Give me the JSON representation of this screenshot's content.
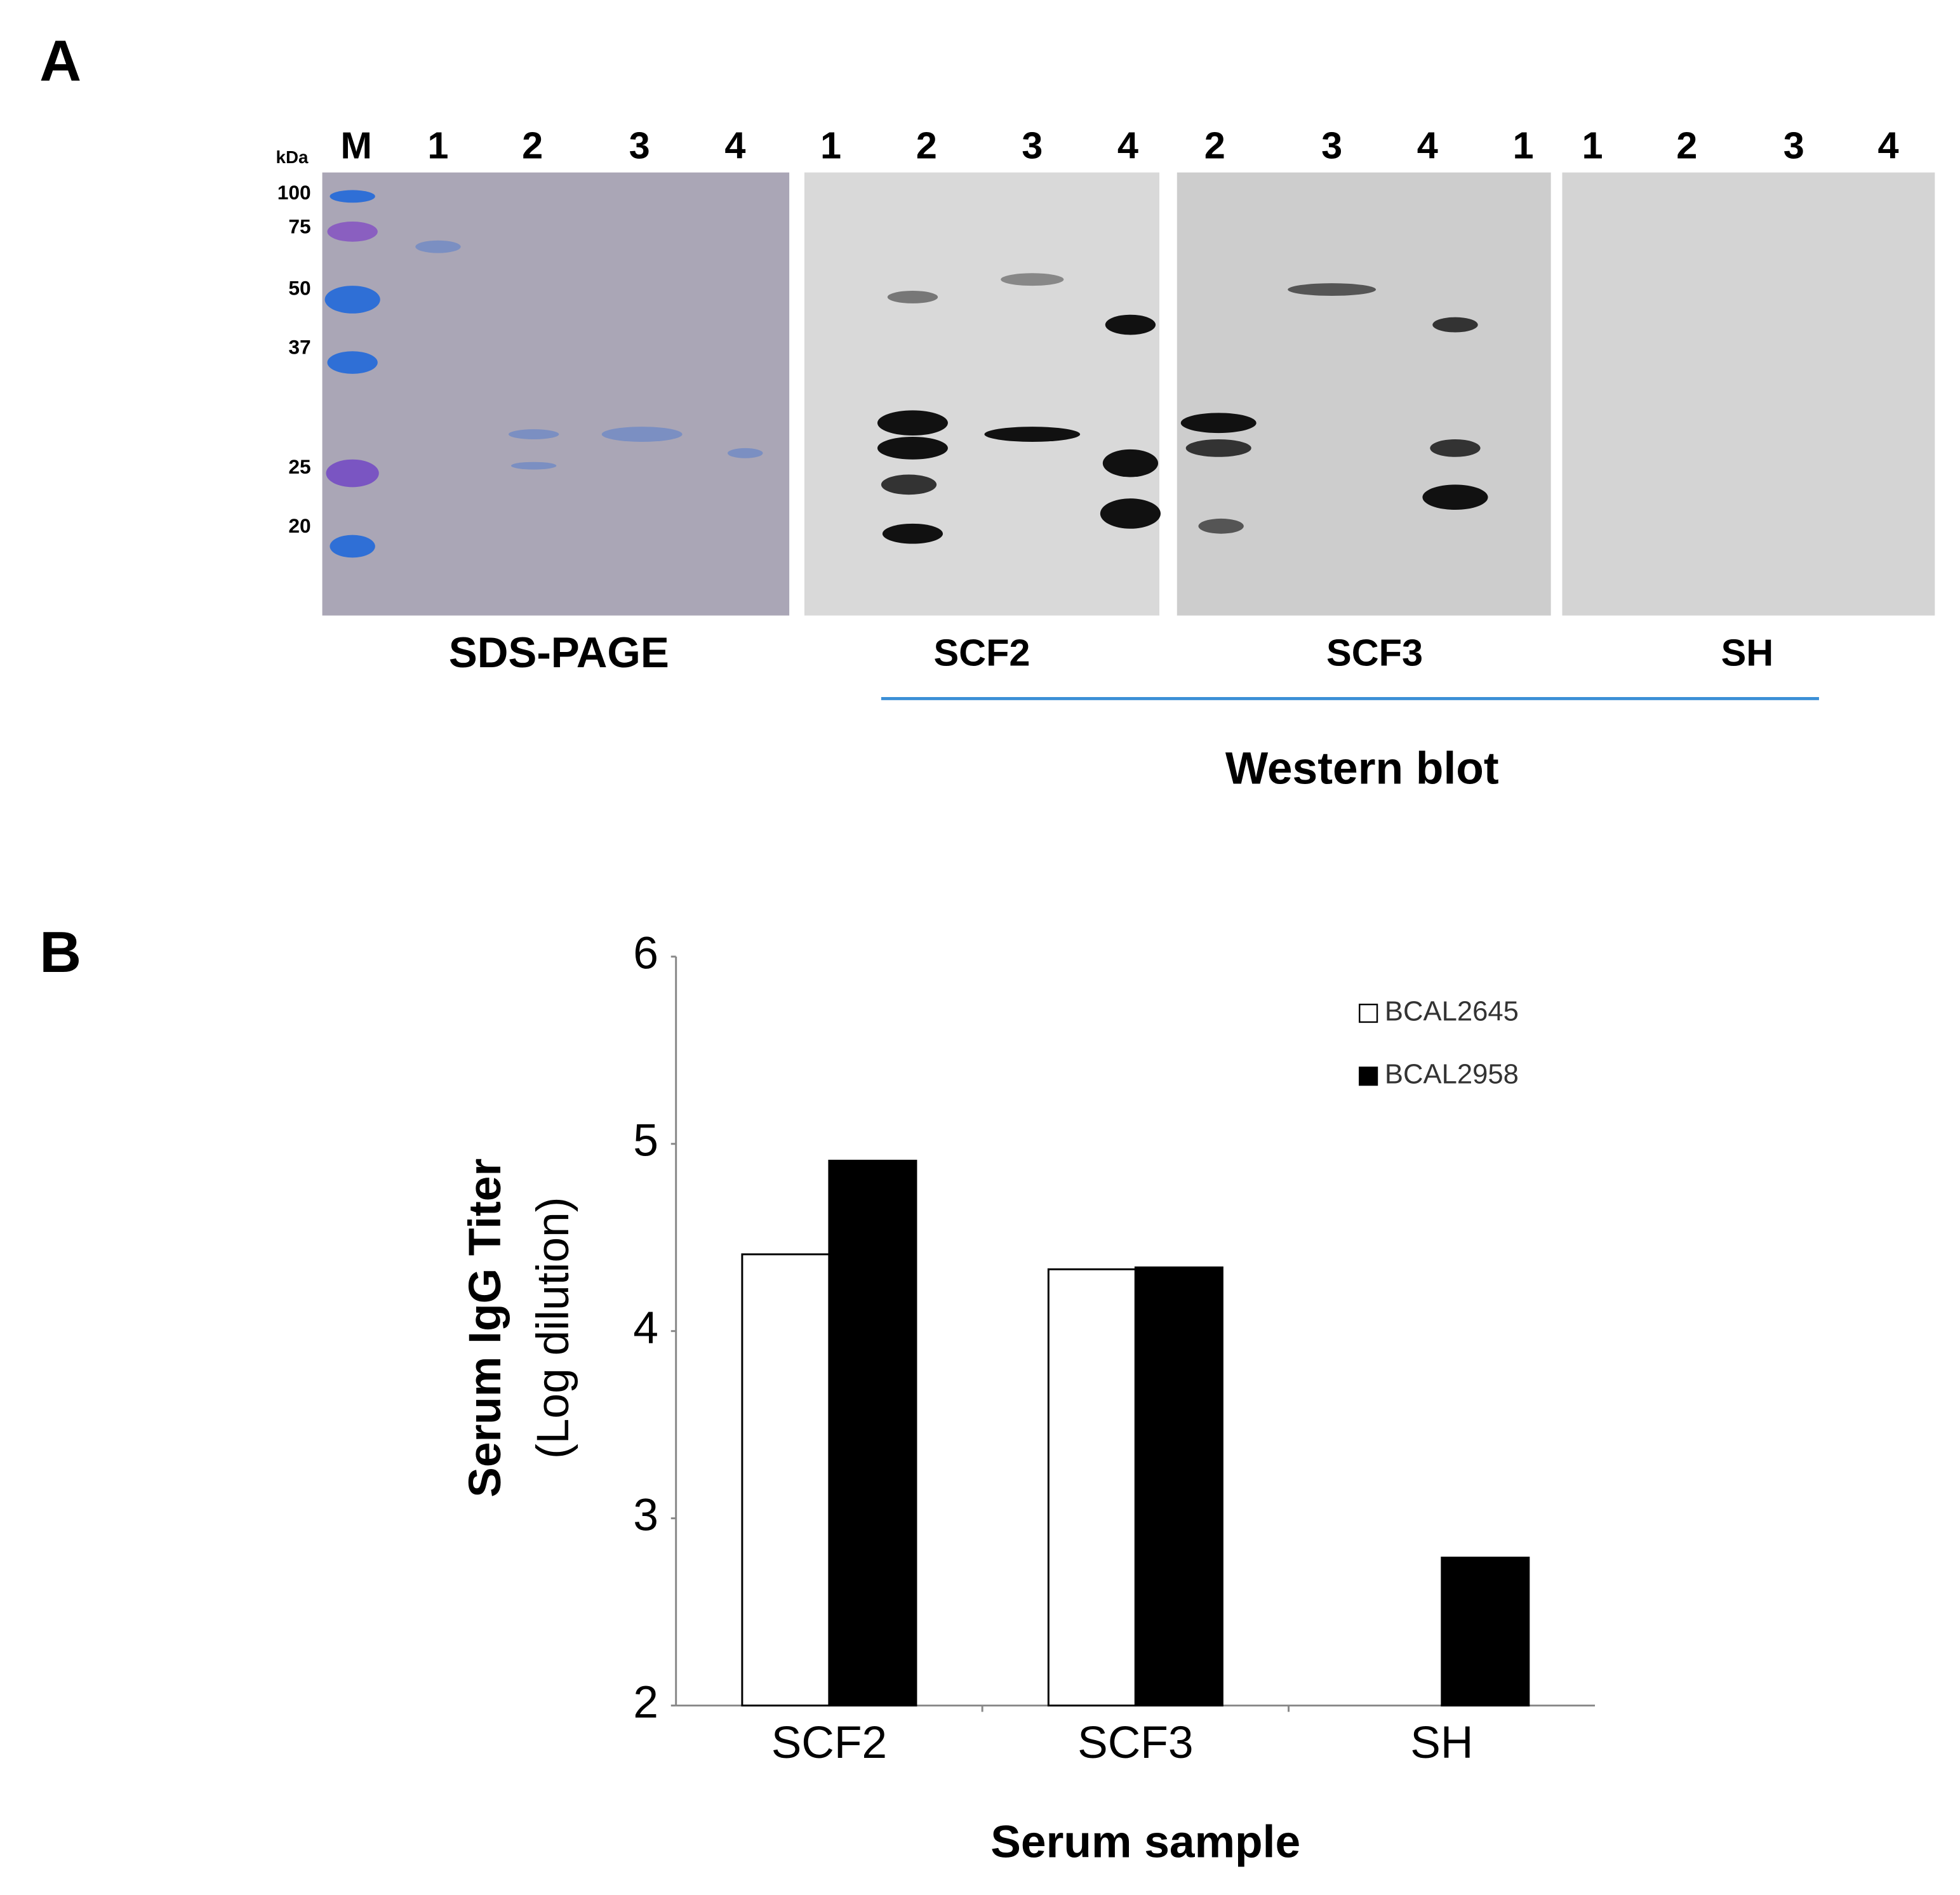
{
  "panel_a": {
    "label": "A",
    "unit": "kDa",
    "marker_kda": [
      "100",
      "75",
      "50",
      "37",
      "25",
      "20"
    ],
    "gels": [
      {
        "lanes": [
          "M",
          "1",
          "2",
          "3",
          "4"
        ],
        "label": "SDS-PAGE"
      },
      {
        "lanes": [
          "1",
          "2",
          "3",
          "4"
        ],
        "label": "SCF2"
      },
      {
        "lanes": [
          "2",
          "3",
          "4",
          "1"
        ],
        "label": "SCF3"
      },
      {
        "lanes": [
          "1",
          "2",
          "3",
          "4"
        ],
        "label": "SH"
      }
    ],
    "group_label": "Western blot"
  },
  "panel_b": {
    "label": "B"
  },
  "chart_data": {
    "type": "bar",
    "categories": [
      "SCF2",
      "SCF3",
      "SH"
    ],
    "series": [
      {
        "name": "BCAL2645",
        "color": "#ffffff",
        "values": [
          4.41,
          4.33,
          null
        ]
      },
      {
        "name": "BCAL2958",
        "color": "#000000",
        "values": [
          4.91,
          4.34,
          2.79
        ]
      }
    ],
    "ylim": [
      2,
      6
    ],
    "yticks": [
      2,
      3,
      4,
      5,
      6
    ],
    "ylabel": "Serum IgG Titer",
    "ylabel_sub": "(Log dilution)",
    "xlabel": "Serum sample",
    "legend": "upper right",
    "grid": false
  }
}
